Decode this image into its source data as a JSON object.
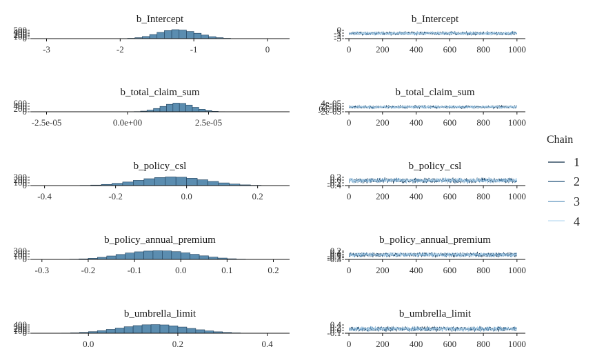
{
  "colors": {
    "bar_fill": "#5b8db0",
    "bar_stroke": "#1f3f5a",
    "axis": "#111111",
    "chain_1": "#0b2a44",
    "chain_2": "#1f4f78",
    "chain_3": "#5d93bd",
    "chain_4": "#bcdcf2"
  },
  "legend": {
    "title": "Chain",
    "items": [
      "1",
      "2",
      "3",
      "4"
    ]
  },
  "chart_data": [
    {
      "type": "bar",
      "kind": "histogram",
      "title": "b_Intercept",
      "xlim": [
        -3.22,
        0.3
      ],
      "ylim": [
        0,
        500
      ],
      "x_ticks": [
        -3,
        -2,
        -1,
        0
      ],
      "x_tick_labels": [
        "-3",
        "-2",
        "-1",
        "0"
      ],
      "y_tick_labels": [
        "500",
        "400",
        "300",
        "200",
        "100",
        "0"
      ],
      "bins": [
        {
          "x0": -2.1,
          "x1": -2.0,
          "count": 2
        },
        {
          "x0": -2.0,
          "x1": -1.9,
          "count": 8
        },
        {
          "x0": -1.9,
          "x1": -1.8,
          "count": 20
        },
        {
          "x0": -1.8,
          "x1": -1.7,
          "count": 55
        },
        {
          "x0": -1.7,
          "x1": -1.6,
          "count": 120
        },
        {
          "x0": -1.6,
          "x1": -1.5,
          "count": 230
        },
        {
          "x0": -1.5,
          "x1": -1.4,
          "count": 350
        },
        {
          "x0": -1.4,
          "x1": -1.3,
          "count": 450
        },
        {
          "x0": -1.3,
          "x1": -1.2,
          "count": 500
        },
        {
          "x0": -1.2,
          "x1": -1.1,
          "count": 480
        },
        {
          "x0": -1.1,
          "x1": -1.0,
          "count": 400
        },
        {
          "x0": -1.0,
          "x1": -0.9,
          "count": 300
        },
        {
          "x0": -0.9,
          "x1": -0.8,
          "count": 200
        },
        {
          "x0": -0.8,
          "x1": -0.7,
          "count": 110
        },
        {
          "x0": -0.7,
          "x1": -0.6,
          "count": 55
        },
        {
          "x0": -0.6,
          "x1": -0.5,
          "count": 20
        },
        {
          "x0": -0.5,
          "x1": -0.4,
          "count": 5
        }
      ]
    },
    {
      "type": "line",
      "kind": "trace",
      "title": "b_Intercept",
      "xlim": [
        -25,
        1050
      ],
      "ylim": [
        -3.2,
        0.2
      ],
      "x_ticks": [
        0,
        200,
        400,
        600,
        800,
        1000
      ],
      "x_tick_labels": [
        "0",
        "200",
        "400",
        "600",
        "800",
        "1000"
      ],
      "y_tick_labels": [
        "0",
        "-1",
        "-2",
        "-3"
      ],
      "iterations": 1000,
      "series": [
        {
          "chain": "1",
          "mean": -1.2,
          "sd": 0.3,
          "seed": 11
        },
        {
          "chain": "2",
          "mean": -1.2,
          "sd": 0.3,
          "seed": 12
        },
        {
          "chain": "3",
          "mean": -1.2,
          "sd": 0.3,
          "seed": 13
        },
        {
          "chain": "4",
          "mean": -1.2,
          "sd": 0.3,
          "seed": 14
        }
      ]
    },
    {
      "type": "bar",
      "kind": "histogram",
      "title": "b_total_claim_sum",
      "xlim": [
        -3e-05,
        5e-05
      ],
      "ylim": [
        0,
        600
      ],
      "x_ticks": [
        -2.5e-05,
        0,
        2.5e-05
      ],
      "x_tick_labels": [
        "-2.5e-05",
        "0.0e+00",
        "2.5e-05"
      ],
      "y_tick_labels": [
        "600",
        "400",
        "200",
        "0"
      ],
      "bins": [
        {
          "x0": 0.0,
          "x1": 2e-06,
          "count": 5
        },
        {
          "x0": 2e-06,
          "x1": 4e-06,
          "count": 15
        },
        {
          "x0": 4e-06,
          "x1": 6e-06,
          "count": 45
        },
        {
          "x0": 6e-06,
          "x1": 8e-06,
          "count": 110
        },
        {
          "x0": 8e-06,
          "x1": 1e-05,
          "count": 220
        },
        {
          "x0": 1e-05,
          "x1": 1.2e-05,
          "count": 360
        },
        {
          "x0": 1.2e-05,
          "x1": 1.4e-05,
          "count": 500
        },
        {
          "x0": 1.4e-05,
          "x1": 1.6e-05,
          "count": 580
        },
        {
          "x0": 1.6e-05,
          "x1": 1.8e-05,
          "count": 560
        },
        {
          "x0": 1.8e-05,
          "x1": 2e-05,
          "count": 450
        },
        {
          "x0": 2e-05,
          "x1": 2.2e-05,
          "count": 300
        },
        {
          "x0": 2.2e-05,
          "x1": 2.4e-05,
          "count": 170
        },
        {
          "x0": 2.4e-05,
          "x1": 2.6e-05,
          "count": 80
        },
        {
          "x0": 2.6e-05,
          "x1": 2.8e-05,
          "count": 30
        },
        {
          "x0": 2.8e-05,
          "x1": 3e-05,
          "count": 10
        }
      ]
    },
    {
      "type": "line",
      "kind": "trace",
      "title": "b_total_claim_sum",
      "xlim": [
        -25,
        1050
      ],
      "ylim": [
        -2.8e-05,
        5.3e-05
      ],
      "x_ticks": [
        0,
        200,
        400,
        600,
        800,
        1000
      ],
      "x_tick_labels": [
        "0",
        "200",
        "400",
        "600",
        "800",
        "1000"
      ],
      "y_tick_labels": [
        "4e-05",
        "2e-05",
        "0e+00",
        "-2e-05"
      ],
      "iterations": 1000,
      "series": [
        {
          "chain": "1",
          "mean": 1.5e-05,
          "sd": 6e-06,
          "seed": 21
        },
        {
          "chain": "2",
          "mean": 1.5e-05,
          "sd": 6e-06,
          "seed": 22
        },
        {
          "chain": "3",
          "mean": 1.5e-05,
          "sd": 6e-06,
          "seed": 23
        },
        {
          "chain": "4",
          "mean": 1.5e-05,
          "sd": 6e-06,
          "seed": 24
        }
      ]
    },
    {
      "type": "bar",
      "kind": "histogram",
      "title": "b_policy_csl",
      "xlim": [
        -0.44,
        0.29
      ],
      "ylim": [
        0,
        300
      ],
      "x_ticks": [
        -0.4,
        -0.2,
        0.0,
        0.2
      ],
      "x_tick_labels": [
        "-0.4",
        "-0.2",
        "0.0",
        "0.2"
      ],
      "y_tick_labels": [
        "300",
        "200",
        "100",
        "0"
      ],
      "bins": [
        {
          "x0": -0.33,
          "x1": -0.3,
          "count": 3
        },
        {
          "x0": -0.3,
          "x1": -0.27,
          "count": 8
        },
        {
          "x0": -0.27,
          "x1": -0.24,
          "count": 18
        },
        {
          "x0": -0.24,
          "x1": -0.21,
          "count": 40
        },
        {
          "x0": -0.21,
          "x1": -0.18,
          "count": 75
        },
        {
          "x0": -0.18,
          "x1": -0.15,
          "count": 120
        },
        {
          "x0": -0.15,
          "x1": -0.12,
          "count": 175
        },
        {
          "x0": -0.12,
          "x1": -0.09,
          "count": 230
        },
        {
          "x0": -0.09,
          "x1": -0.06,
          "count": 270
        },
        {
          "x0": -0.06,
          "x1": -0.03,
          "count": 290
        },
        {
          "x0": -0.03,
          "x1": 0.0,
          "count": 280
        },
        {
          "x0": 0.0,
          "x1": 0.03,
          "count": 245
        },
        {
          "x0": 0.03,
          "x1": 0.06,
          "count": 195
        },
        {
          "x0": 0.06,
          "x1": 0.09,
          "count": 140
        },
        {
          "x0": 0.09,
          "x1": 0.12,
          "count": 90
        },
        {
          "x0": 0.12,
          "x1": 0.15,
          "count": 52
        },
        {
          "x0": 0.15,
          "x1": 0.18,
          "count": 25
        },
        {
          "x0": 0.18,
          "x1": 0.21,
          "count": 10
        },
        {
          "x0": 0.21,
          "x1": 0.24,
          "count": 3
        }
      ]
    },
    {
      "type": "line",
      "kind": "trace",
      "title": "b_policy_csl",
      "xlim": [
        -25,
        1050
      ],
      "ylim": [
        -0.45,
        0.25
      ],
      "x_ticks": [
        0,
        200,
        400,
        600,
        800,
        1000
      ],
      "x_tick_labels": [
        "0",
        "200",
        "400",
        "600",
        "800",
        "1000"
      ],
      "y_tick_labels": [
        "0.2",
        "0.0",
        "-0.2",
        "-0.4"
      ],
      "iterations": 1000,
      "series": [
        {
          "chain": "1",
          "mean": -0.05,
          "sd": 0.09,
          "seed": 31
        },
        {
          "chain": "2",
          "mean": -0.05,
          "sd": 0.09,
          "seed": 32
        },
        {
          "chain": "3",
          "mean": -0.05,
          "sd": 0.09,
          "seed": 33
        },
        {
          "chain": "4",
          "mean": -0.05,
          "sd": 0.09,
          "seed": 34
        }
      ]
    },
    {
      "type": "bar",
      "kind": "histogram",
      "title": "b_policy_annual_premium",
      "xlim": [
        -0.325,
        0.235
      ],
      "ylim": [
        0,
        300
      ],
      "x_ticks": [
        -0.3,
        -0.2,
        -0.1,
        0.0,
        0.1,
        0.2
      ],
      "x_tick_labels": [
        "-0.3",
        "-0.2",
        "-0.1",
        "0.0",
        "0.1",
        "0.2"
      ],
      "y_tick_labels": [
        "300",
        "200",
        "100",
        "0"
      ],
      "bins": [
        {
          "x0": -0.26,
          "x1": -0.24,
          "count": 3
        },
        {
          "x0": -0.24,
          "x1": -0.22,
          "count": 8
        },
        {
          "x0": -0.22,
          "x1": -0.2,
          "count": 18
        },
        {
          "x0": -0.2,
          "x1": -0.18,
          "count": 38
        },
        {
          "x0": -0.18,
          "x1": -0.16,
          "count": 70
        },
        {
          "x0": -0.16,
          "x1": -0.14,
          "count": 115
        },
        {
          "x0": -0.14,
          "x1": -0.12,
          "count": 165
        },
        {
          "x0": -0.12,
          "x1": -0.1,
          "count": 215
        },
        {
          "x0": -0.1,
          "x1": -0.08,
          "count": 255
        },
        {
          "x0": -0.08,
          "x1": -0.06,
          "count": 280
        },
        {
          "x0": -0.06,
          "x1": -0.04,
          "count": 290
        },
        {
          "x0": -0.04,
          "x1": -0.02,
          "count": 285
        },
        {
          "x0": -0.02,
          "x1": 0.0,
          "count": 260
        },
        {
          "x0": 0.0,
          "x1": 0.02,
          "count": 220
        },
        {
          "x0": 0.02,
          "x1": 0.04,
          "count": 170
        },
        {
          "x0": 0.04,
          "x1": 0.06,
          "count": 120
        },
        {
          "x0": 0.06,
          "x1": 0.08,
          "count": 78
        },
        {
          "x0": 0.08,
          "x1": 0.1,
          "count": 45
        },
        {
          "x0": 0.1,
          "x1": 0.12,
          "count": 22
        },
        {
          "x0": 0.12,
          "x1": 0.14,
          "count": 9
        },
        {
          "x0": 0.14,
          "x1": 0.16,
          "count": 3
        }
      ]
    },
    {
      "type": "line",
      "kind": "trace",
      "title": "b_policy_annual_premium",
      "xlim": [
        -25,
        1050
      ],
      "ylim": [
        -0.33,
        0.23
      ],
      "x_ticks": [
        0,
        200,
        400,
        600,
        800,
        1000
      ],
      "x_tick_labels": [
        "0",
        "200",
        "400",
        "600",
        "800",
        "1000"
      ],
      "y_tick_labels": [
        "0.2",
        "0.1",
        "0.0",
        "-0.1",
        "-0.2",
        "-0.3"
      ],
      "iterations": 1000,
      "series": [
        {
          "chain": "1",
          "mean": -0.04,
          "sd": 0.065,
          "seed": 41
        },
        {
          "chain": "2",
          "mean": -0.04,
          "sd": 0.065,
          "seed": 42
        },
        {
          "chain": "3",
          "mean": -0.04,
          "sd": 0.065,
          "seed": 43
        },
        {
          "chain": "4",
          "mean": -0.04,
          "sd": 0.065,
          "seed": 44
        }
      ]
    },
    {
      "type": "bar",
      "kind": "histogram",
      "title": "b_umbrella_limit",
      "xlim": [
        -0.13,
        0.45
      ],
      "ylim": [
        0,
        400
      ],
      "x_ticks": [
        0.0,
        0.2,
        0.4
      ],
      "x_tick_labels": [
        "0.0",
        "0.2",
        "0.4"
      ],
      "y_tick_labels": [
        "400",
        "300",
        "200",
        "100",
        "0"
      ],
      "bins": [
        {
          "x0": -0.08,
          "x1": -0.06,
          "count": 3
        },
        {
          "x0": -0.06,
          "x1": -0.04,
          "count": 8
        },
        {
          "x0": -0.04,
          "x1": -0.02,
          "count": 18
        },
        {
          "x0": -0.02,
          "x1": 0.0,
          "count": 38
        },
        {
          "x0": 0.0,
          "x1": 0.02,
          "count": 70
        },
        {
          "x0": 0.02,
          "x1": 0.04,
          "count": 115
        },
        {
          "x0": 0.04,
          "x1": 0.06,
          "count": 170
        },
        {
          "x0": 0.06,
          "x1": 0.08,
          "count": 230
        },
        {
          "x0": 0.08,
          "x1": 0.1,
          "count": 290
        },
        {
          "x0": 0.1,
          "x1": 0.12,
          "count": 340
        },
        {
          "x0": 0.12,
          "x1": 0.14,
          "count": 375
        },
        {
          "x0": 0.14,
          "x1": 0.16,
          "count": 385
        },
        {
          "x0": 0.16,
          "x1": 0.18,
          "count": 370
        },
        {
          "x0": 0.18,
          "x1": 0.2,
          "count": 330
        },
        {
          "x0": 0.2,
          "x1": 0.22,
          "count": 275
        },
        {
          "x0": 0.22,
          "x1": 0.24,
          "count": 215
        },
        {
          "x0": 0.24,
          "x1": 0.26,
          "count": 155
        },
        {
          "x0": 0.26,
          "x1": 0.28,
          "count": 105
        },
        {
          "x0": 0.28,
          "x1": 0.3,
          "count": 65
        },
        {
          "x0": 0.3,
          "x1": 0.32,
          "count": 35
        },
        {
          "x0": 0.32,
          "x1": 0.34,
          "count": 16
        },
        {
          "x0": 0.34,
          "x1": 0.36,
          "count": 6
        },
        {
          "x0": 0.36,
          "x1": 0.38,
          "count": 2
        }
      ]
    },
    {
      "type": "line",
      "kind": "trace",
      "title": "b_umbrella_limit",
      "xlim": [
        -25,
        1050
      ],
      "ylim": [
        -0.13,
        0.45
      ],
      "x_ticks": [
        0,
        200,
        400,
        600,
        800,
        1000
      ],
      "x_tick_labels": [
        "0",
        "200",
        "400",
        "600",
        "800",
        "1000"
      ],
      "y_tick_labels": [
        "0.4",
        "0.2",
        "0.0",
        "-0.1"
      ],
      "iterations": 1000,
      "series": [
        {
          "chain": "1",
          "mean": 0.15,
          "sd": 0.07,
          "seed": 51
        },
        {
          "chain": "2",
          "mean": 0.15,
          "sd": 0.07,
          "seed": 52
        },
        {
          "chain": "3",
          "mean": 0.15,
          "sd": 0.07,
          "seed": 53
        },
        {
          "chain": "4",
          "mean": 0.15,
          "sd": 0.07,
          "seed": 54
        }
      ]
    }
  ]
}
